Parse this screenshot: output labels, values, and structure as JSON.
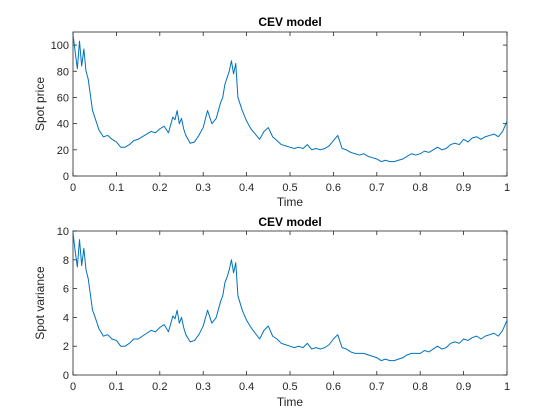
{
  "chart_data": [
    {
      "type": "line",
      "title": "CEV model",
      "xlabel": "Time",
      "ylabel": "Spot price",
      "xlim": [
        0,
        1
      ],
      "ylim": [
        0,
        110
      ],
      "xticks": [
        0,
        0.1,
        0.2,
        0.3,
        0.4,
        0.5,
        0.6,
        0.7,
        0.8,
        0.9,
        1
      ],
      "yticks": [
        0,
        20,
        40,
        60,
        80,
        100
      ],
      "grid": false,
      "legend": "none",
      "color": "#0072BD",
      "series": [
        {
          "x": [
            0,
            0.005,
            0.01,
            0.015,
            0.02,
            0.025,
            0.03,
            0.035,
            0.04,
            0.045,
            0.05,
            0.06,
            0.07,
            0.08,
            0.09,
            0.1,
            0.11,
            0.12,
            0.13,
            0.14,
            0.15,
            0.16,
            0.17,
            0.18,
            0.19,
            0.2,
            0.21,
            0.22,
            0.23,
            0.235,
            0.24,
            0.245,
            0.25,
            0.255,
            0.26,
            0.27,
            0.28,
            0.29,
            0.3,
            0.31,
            0.32,
            0.33,
            0.34,
            0.345,
            0.35,
            0.355,
            0.36,
            0.365,
            0.37,
            0.375,
            0.38,
            0.39,
            0.4,
            0.41,
            0.42,
            0.43,
            0.44,
            0.45,
            0.46,
            0.47,
            0.48,
            0.49,
            0.5,
            0.51,
            0.52,
            0.53,
            0.54,
            0.55,
            0.56,
            0.57,
            0.58,
            0.59,
            0.6,
            0.61,
            0.62,
            0.63,
            0.64,
            0.65,
            0.66,
            0.67,
            0.68,
            0.69,
            0.7,
            0.71,
            0.72,
            0.73,
            0.74,
            0.75,
            0.76,
            0.77,
            0.78,
            0.79,
            0.8,
            0.81,
            0.82,
            0.83,
            0.84,
            0.85,
            0.86,
            0.87,
            0.88,
            0.89,
            0.9,
            0.91,
            0.92,
            0.93,
            0.94,
            0.95,
            0.96,
            0.97,
            0.98,
            0.99,
            1
          ],
          "y": [
            108,
            95,
            82,
            103,
            84,
            97,
            80,
            74,
            62,
            50,
            45,
            35,
            30,
            31,
            28,
            26,
            22,
            22,
            24,
            27,
            28,
            30,
            32,
            34,
            33,
            36,
            38,
            33,
            45,
            43,
            50,
            40,
            44,
            36,
            31,
            25,
            26,
            31,
            37,
            50,
            40,
            44,
            56,
            60,
            70,
            75,
            80,
            88,
            78,
            86,
            60,
            50,
            42,
            36,
            32,
            28,
            34,
            37,
            30,
            27,
            24,
            23,
            22,
            21,
            22,
            21,
            24,
            20,
            21,
            20,
            21,
            23,
            27,
            31,
            21,
            20,
            18,
            17,
            16,
            17,
            15,
            14,
            13,
            11,
            12,
            11,
            11,
            12,
            13,
            15,
            17,
            16,
            17,
            19,
            18,
            20,
            22,
            20,
            21,
            24,
            25,
            24,
            28,
            26,
            29,
            30,
            28,
            30,
            31,
            32,
            30,
            34,
            42
          ]
        }
      ]
    },
    {
      "type": "line",
      "title": "CEV model",
      "xlabel": "Time",
      "ylabel": "Spot variance",
      "xlim": [
        0,
        1
      ],
      "ylim": [
        0,
        10
      ],
      "xticks": [
        0,
        0.1,
        0.2,
        0.3,
        0.4,
        0.5,
        0.6,
        0.7,
        0.8,
        0.9,
        1
      ],
      "yticks": [
        0,
        2,
        4,
        6,
        8,
        10
      ],
      "grid": false,
      "legend": "none",
      "color": "#0072BD",
      "series": [
        {
          "x": [
            0,
            0.005,
            0.01,
            0.015,
            0.02,
            0.025,
            0.03,
            0.035,
            0.04,
            0.045,
            0.05,
            0.06,
            0.07,
            0.08,
            0.09,
            0.1,
            0.11,
            0.12,
            0.13,
            0.14,
            0.15,
            0.16,
            0.17,
            0.18,
            0.19,
            0.2,
            0.21,
            0.22,
            0.23,
            0.235,
            0.24,
            0.245,
            0.25,
            0.255,
            0.26,
            0.27,
            0.28,
            0.29,
            0.3,
            0.31,
            0.32,
            0.33,
            0.34,
            0.345,
            0.35,
            0.355,
            0.36,
            0.365,
            0.37,
            0.375,
            0.38,
            0.39,
            0.4,
            0.41,
            0.42,
            0.43,
            0.44,
            0.45,
            0.46,
            0.47,
            0.48,
            0.49,
            0.5,
            0.51,
            0.52,
            0.53,
            0.54,
            0.55,
            0.56,
            0.57,
            0.58,
            0.59,
            0.6,
            0.61,
            0.62,
            0.63,
            0.64,
            0.65,
            0.66,
            0.67,
            0.68,
            0.69,
            0.7,
            0.71,
            0.72,
            0.73,
            0.74,
            0.75,
            0.76,
            0.77,
            0.78,
            0.79,
            0.8,
            0.81,
            0.82,
            0.83,
            0.84,
            0.85,
            0.86,
            0.87,
            0.88,
            0.89,
            0.9,
            0.91,
            0.92,
            0.93,
            0.94,
            0.95,
            0.96,
            0.97,
            0.98,
            0.99,
            1
          ],
          "y": [
            9.9,
            8.6,
            7.5,
            9.4,
            7.6,
            8.8,
            7.3,
            6.7,
            5.6,
            4.5,
            4.1,
            3.2,
            2.7,
            2.8,
            2.5,
            2.4,
            2.0,
            2.0,
            2.2,
            2.5,
            2.5,
            2.7,
            2.9,
            3.1,
            3.0,
            3.3,
            3.5,
            3.0,
            4.1,
            3.9,
            4.5,
            3.6,
            4.0,
            3.3,
            2.8,
            2.3,
            2.4,
            2.8,
            3.4,
            4.5,
            3.6,
            4.0,
            5.1,
            5.5,
            6.4,
            6.8,
            7.3,
            8.0,
            7.1,
            7.8,
            5.5,
            4.5,
            3.8,
            3.3,
            2.9,
            2.5,
            3.1,
            3.4,
            2.7,
            2.5,
            2.2,
            2.1,
            2.0,
            1.9,
            2.0,
            1.9,
            2.2,
            1.8,
            1.9,
            1.8,
            1.9,
            2.1,
            2.5,
            2.8,
            1.9,
            1.8,
            1.6,
            1.5,
            1.5,
            1.5,
            1.4,
            1.3,
            1.2,
            1.0,
            1.1,
            1.0,
            1.0,
            1.1,
            1.2,
            1.4,
            1.5,
            1.5,
            1.5,
            1.7,
            1.6,
            1.8,
            2.0,
            1.8,
            1.9,
            2.2,
            2.3,
            2.2,
            2.5,
            2.4,
            2.6,
            2.7,
            2.5,
            2.7,
            2.8,
            2.9,
            2.7,
            3.1,
            3.8
          ]
        }
      ]
    }
  ]
}
